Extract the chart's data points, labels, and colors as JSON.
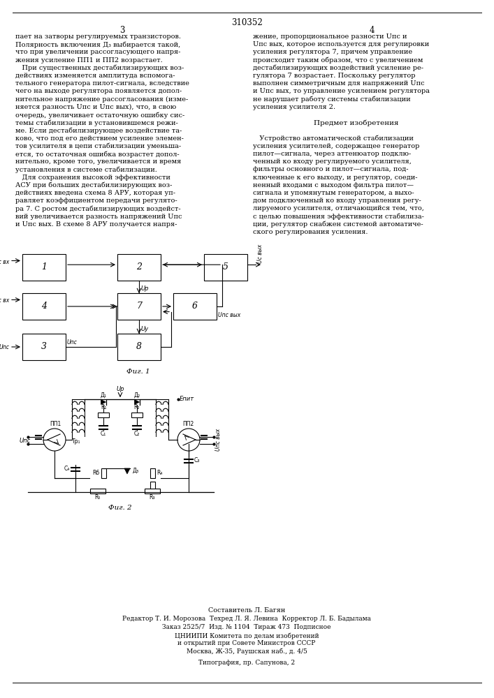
{
  "title": "310352",
  "background_color": "#ffffff",
  "left_column_text": [
    "пает на затворы регулируемых транзисторов.",
    "Полярность включения Д₃ выбирается такой,",
    "что при увеличении рассогласующего напря-",
    "жения усиление ПП1 и ПП2 возрастает.",
    "   При существенных дестабилизирующих воз-",
    "действиях изменяется амплитуда вспомога-",
    "тельного генератора пилот-сигнала, вследствие",
    "чего на выходе регулятора появляется допол-",
    "нительное напряжение рассогласования (изме-",
    "няется разность Uпс и Uпс вых), что, в свою",
    "очередь, увеличивает остаточную ошибку сис-",
    "темы стабилизации в установившемся режи-",
    "ме. Если дестабилизирующее воздействие та-",
    "ково, что под его действием усиление элемен-",
    "тов усилителя в цепи стабилизации уменьша-",
    "ется, то остаточная ошибка возрастет допол-",
    "нительно, кроме того, увеличивается и время",
    "установления в системе стабилизации.",
    "   Для сохранения высокой эффективности",
    "АСУ при больших дестабилизирующих воз-",
    "действиях введена схема 8 АРУ, которая уп-",
    "равляет коэффициентом передачи регулято-",
    "ра 7. С ростом дестабилизирующих воздейст-",
    "вий увеличивается разность напряжений Uпс",
    "и Uпс вых. В схеме 8 АРУ получается напря-"
  ],
  "right_column_text": [
    "жение, пропорциональное разности Uпс и",
    "Uпс вых, которое используется для регулировки",
    "усиления регулятора 7, причем управление",
    "происходит таким образом, что с увеличением",
    "дестабилизирующих воздействий усиление ре-",
    "гулятора 7 возрастает. Поскольку регулятор",
    "выполнен симметричным для напряжений Uпс",
    "и Uпс вых, то управление усилением регулятора",
    "не нарушает работу системы стабилизации",
    "усиления усилителя 2.",
    "",
    "Предмет изобретения",
    "",
    "   Устройство автоматической стабилизации",
    "усиления усилителей, содержащее генератор",
    "пилот—сигнала, через аттенюатор подклю-",
    "ченный ко входу регулируемого усилителя,",
    "фильтры основного и пилот—сигнала, под-",
    "ключенные к его выходу, и регулятор, соеди-",
    "ненный входами с выходом фильтра пилот—",
    "сигнала и упомянутым генератором, а выхо-",
    "дом подключенный ко входу управления регу-",
    "лируемого усилителя, отличающийся тем, что,",
    "с целью повышения эффективности стабилиза-",
    "ции, регулятор снабжен системой автоматиче-",
    "ского регулирования усиления."
  ],
  "footer_lines": [
    "Составитель Л. Багян",
    "Редактор Т. И. Морозова  Техред Л. Я. Левина  Корректор Л. Б. Бадылама",
    "Заказ 2525/7  Изд. № 1104  Тираж 473  Подписное",
    "ЦНИИПИ Комитета по делам изобретений",
    "и открытий при Совете Министров СССР",
    "Москва, Ж-35, Раушская наб., д. 4/5",
    "",
    "Типография, пр. Сапунова, 2"
  ]
}
